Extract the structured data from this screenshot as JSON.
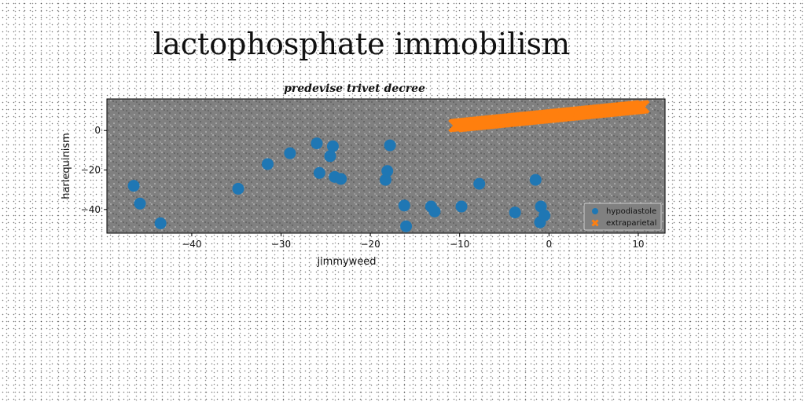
{
  "title": "lactophosphate immobilism",
  "chart_data": {
    "type": "scatter",
    "title": "predevise trivet decree",
    "xlabel": "jimmyweed",
    "ylabel": "harlequinism",
    "xlim": [
      -49.5,
      13
    ],
    "ylim": [
      -52,
      16
    ],
    "xticks": [
      -40,
      -30,
      -20,
      -10,
      0,
      10
    ],
    "yticks": [
      0,
      -20,
      -40
    ],
    "grid": false,
    "legend_position": "lower-right",
    "background": "#808080",
    "series": [
      {
        "name": "hypodiastole",
        "marker": "circle",
        "color": "#1f77b4",
        "points": [
          [
            -46.5,
            -28
          ],
          [
            -45.8,
            -37
          ],
          [
            -43.5,
            -47
          ],
          [
            -34.8,
            -29.5
          ],
          [
            -31.5,
            -17
          ],
          [
            -29.0,
            -11.5
          ],
          [
            -26.0,
            -6.5
          ],
          [
            -25.7,
            -21.5
          ],
          [
            -24.5,
            -13
          ],
          [
            -24.2,
            -8
          ],
          [
            -24.0,
            -23.5
          ],
          [
            -23.3,
            -24.5
          ],
          [
            -18.3,
            -25
          ],
          [
            -18.1,
            -20.5
          ],
          [
            -17.8,
            -7.5
          ],
          [
            -16.2,
            -38
          ],
          [
            -16.0,
            -48.5
          ],
          [
            -13.2,
            -38.5
          ],
          [
            -12.8,
            -41
          ],
          [
            -9.8,
            -38.5
          ],
          [
            -7.8,
            -27
          ],
          [
            -3.8,
            -41.5
          ],
          [
            -1.5,
            -25
          ],
          [
            -1.0,
            -46.5
          ],
          [
            -0.9,
            -38.5
          ],
          [
            -0.5,
            -43
          ]
        ]
      },
      {
        "name": "extraparietal",
        "marker": "x",
        "color": "#ff7f0e",
        "x": [
          -10.5,
          10.5
        ],
        "y": [
          2.5,
          12
        ],
        "count": 140
      }
    ]
  }
}
